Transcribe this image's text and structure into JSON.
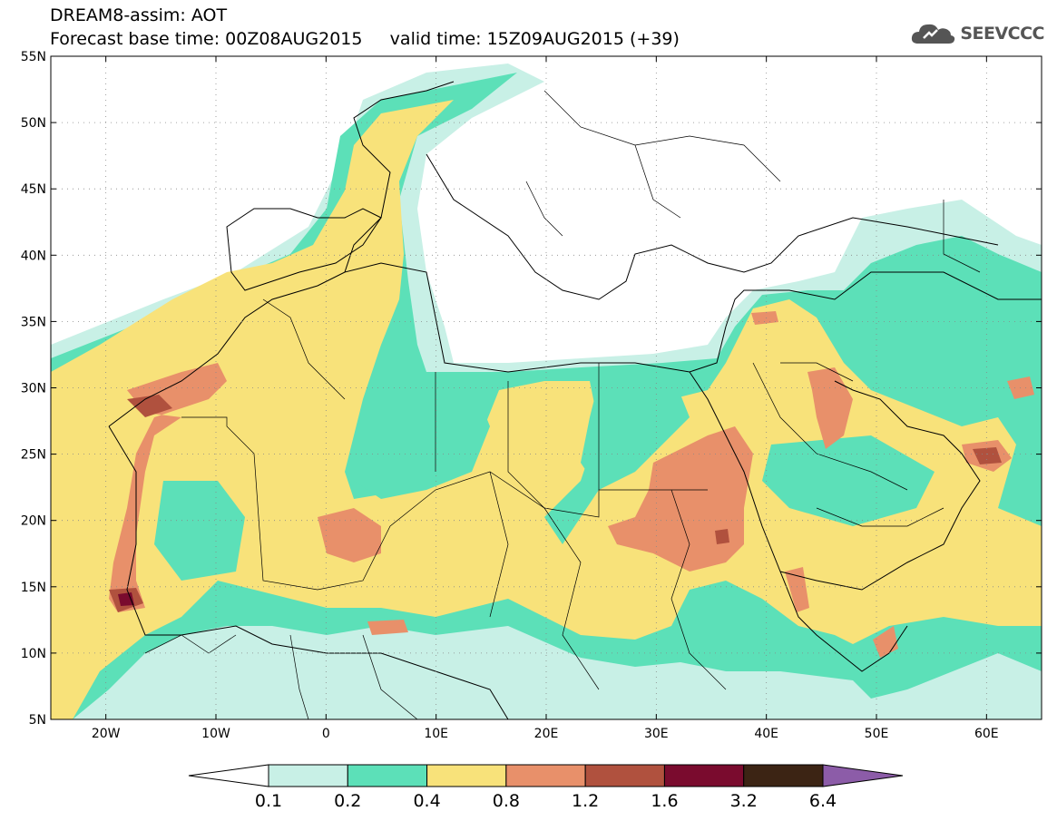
{
  "header": {
    "line1": "DREAM8-assim: AOT",
    "line2": "Forecast base time: 00Z08AUG2015     valid time: 15Z09AUG2015 (+39)",
    "logo_text": "SEEVCCC",
    "logo_icon": "cloud-icon"
  },
  "map": {
    "lon_range": [
      -25,
      65
    ],
    "lat_range": [
      5,
      55
    ],
    "lat_labels": [
      {
        "value": 55,
        "text": "55N"
      },
      {
        "value": 50,
        "text": "50N"
      },
      {
        "value": 45,
        "text": "45N"
      },
      {
        "value": 40,
        "text": "40N"
      },
      {
        "value": 35,
        "text": "35N"
      },
      {
        "value": 30,
        "text": "30N"
      },
      {
        "value": 25,
        "text": "25N"
      },
      {
        "value": 20,
        "text": "20N"
      },
      {
        "value": 15,
        "text": "15N"
      },
      {
        "value": 10,
        "text": "10N"
      },
      {
        "value": 5,
        "text": "5N"
      }
    ],
    "lon_labels": [
      {
        "value": -20,
        "text": "20W"
      },
      {
        "value": -10,
        "text": "10W"
      },
      {
        "value": 0,
        "text": "0"
      },
      {
        "value": 10,
        "text": "10E"
      },
      {
        "value": 20,
        "text": "20E"
      },
      {
        "value": 30,
        "text": "30E"
      },
      {
        "value": 40,
        "text": "40E"
      },
      {
        "value": 50,
        "text": "50E"
      },
      {
        "value": 60,
        "text": "60E"
      }
    ]
  },
  "colorbar": {
    "levels": [
      "0.1",
      "0.2",
      "0.4",
      "0.8",
      "1.2",
      "1.6",
      "3.2",
      "6.4"
    ],
    "colors": [
      "#ffffff",
      "#c8f0e6",
      "#5ce0b8",
      "#f8e27a",
      "#e8906a",
      "#b0513e",
      "#7a0b2e",
      "#3c2414",
      "#8c5ca8"
    ]
  },
  "colors": {
    "very_light": "#c8f0e6",
    "light": "#5ce0b8",
    "yellow": "#f8e27a",
    "orange": "#e8906a",
    "red": "#b0513e",
    "dark_red": "#7a0b2e"
  }
}
